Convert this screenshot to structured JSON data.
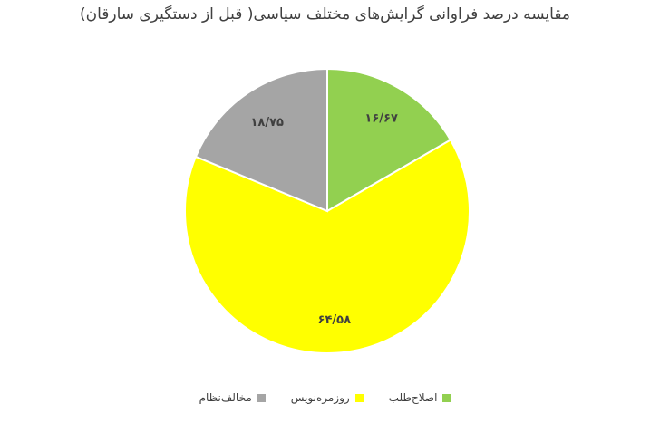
{
  "chart_data": {
    "type": "pie",
    "title": "مقایسه درصد فراوانی گرایش‌های مختلف سیاسی( قبل از دستگیری سارقان)",
    "slices": [
      {
        "name": "اصلاح‌طلب",
        "value": 16.67,
        "label": "۱۶/۶۷",
        "color": "#92d050"
      },
      {
        "name": "روزمره‌نویس",
        "value": 64.58,
        "label": "۶۴/۵۸",
        "color": "#ffff00"
      },
      {
        "name": "مخالف‌نظام",
        "value": 18.75,
        "label": "۱۸/۷۵",
        "color": "#a5a5a5"
      }
    ],
    "legend_position": "bottom"
  }
}
